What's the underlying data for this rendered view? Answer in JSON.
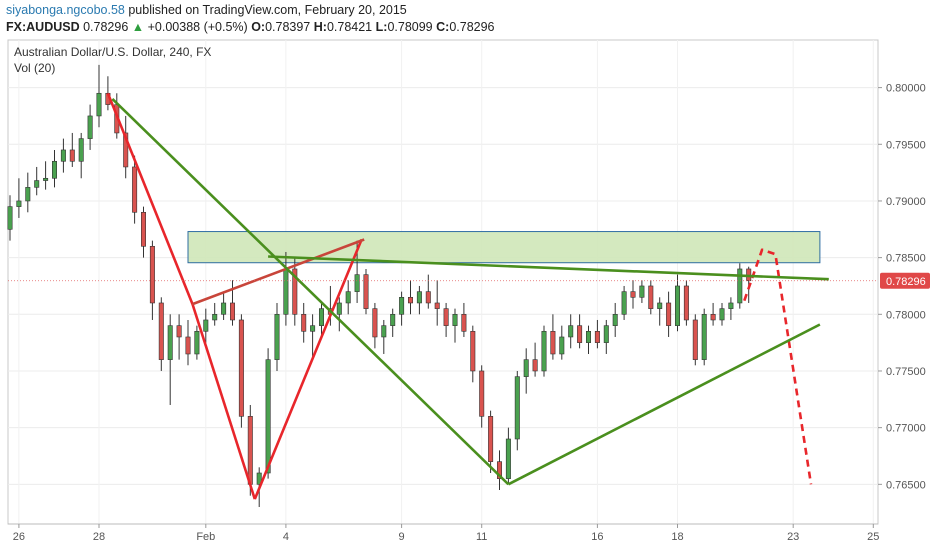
{
  "header": {
    "author": "siyabonga.ngcobo.58",
    "published_text": "published on TradingView.com, February 20, 2015",
    "symbol": "FX:AUDUSD",
    "last": "0.78296",
    "change": "+0.00388 (+0.5%)",
    "ohlc": [
      {
        "label": "O:",
        "value": "0.78397"
      },
      {
        "label": "H:",
        "value": "0.78421"
      },
      {
        "label": "L:",
        "value": "0.78099"
      },
      {
        "label": "C:",
        "value": "0.78296"
      }
    ]
  },
  "chart_data": {
    "type": "candlestick",
    "title": "Australian Dollar/U.S. Dollar, 240, FX",
    "indicator": "Vol (20)",
    "ylim": [
      0.7615,
      0.8042
    ],
    "xlim": [
      0,
      92
    ],
    "y_ticks": [
      "0.80000",
      "0.79500",
      "0.79000",
      "0.78500",
      "0.78000",
      "0.77500",
      "0.77000",
      "0.76500"
    ],
    "x_ticks": [
      {
        "label": "26",
        "x": 1
      },
      {
        "label": "28",
        "x": 10
      },
      {
        "label": "Feb",
        "x": 22
      },
      {
        "label": "4",
        "x": 31
      },
      {
        "label": "9",
        "x": 44
      },
      {
        "label": "11",
        "x": 53
      },
      {
        "label": "16",
        "x": 66
      },
      {
        "label": "18",
        "x": 75
      },
      {
        "label": "23",
        "x": 88
      },
      {
        "label": "25",
        "x": 97
      }
    ],
    "last_price_label": "0.78296",
    "last_price": 0.78296,
    "candles": [
      [
        0.7875,
        0.7905,
        0.7865,
        0.7895
      ],
      [
        0.7895,
        0.792,
        0.7885,
        0.79
      ],
      [
        0.79,
        0.7925,
        0.789,
        0.7912
      ],
      [
        0.7912,
        0.793,
        0.7905,
        0.7918
      ],
      [
        0.7918,
        0.7935,
        0.791,
        0.792
      ],
      [
        0.792,
        0.7945,
        0.7912,
        0.7935
      ],
      [
        0.7935,
        0.7955,
        0.7925,
        0.7945
      ],
      [
        0.7945,
        0.796,
        0.793,
        0.7935
      ],
      [
        0.7935,
        0.796,
        0.792,
        0.7955
      ],
      [
        0.7955,
        0.7985,
        0.7945,
        0.7975
      ],
      [
        0.7975,
        0.802,
        0.7965,
        0.7995
      ],
      [
        0.7995,
        0.801,
        0.798,
        0.7985
      ],
      [
        0.7985,
        0.7995,
        0.7955,
        0.796
      ],
      [
        0.796,
        0.7975,
        0.792,
        0.793
      ],
      [
        0.793,
        0.794,
        0.788,
        0.789
      ],
      [
        0.789,
        0.7895,
        0.785,
        0.786
      ],
      [
        0.786,
        0.7865,
        0.7795,
        0.781
      ],
      [
        0.781,
        0.7815,
        0.775,
        0.776
      ],
      [
        0.776,
        0.78,
        0.772,
        0.779
      ],
      [
        0.779,
        0.78,
        0.776,
        0.778
      ],
      [
        0.778,
        0.7795,
        0.7755,
        0.7765
      ],
      [
        0.7765,
        0.779,
        0.776,
        0.7785
      ],
      [
        0.7785,
        0.7805,
        0.7775,
        0.7795
      ],
      [
        0.7795,
        0.781,
        0.779,
        0.78
      ],
      [
        0.78,
        0.782,
        0.7795,
        0.781
      ],
      [
        0.781,
        0.783,
        0.779,
        0.7795
      ],
      [
        0.7795,
        0.78,
        0.77,
        0.771
      ],
      [
        0.771,
        0.772,
        0.764,
        0.765
      ],
      [
        0.765,
        0.7665,
        0.763,
        0.766
      ],
      [
        0.766,
        0.777,
        0.7655,
        0.776
      ],
      [
        0.776,
        0.781,
        0.775,
        0.78
      ],
      [
        0.78,
        0.7855,
        0.779,
        0.784
      ],
      [
        0.784,
        0.785,
        0.779,
        0.78
      ],
      [
        0.78,
        0.781,
        0.7775,
        0.7785
      ],
      [
        0.7785,
        0.78,
        0.776,
        0.779
      ],
      [
        0.779,
        0.781,
        0.778,
        0.7805
      ],
      [
        0.7805,
        0.7825,
        0.779,
        0.78
      ],
      [
        0.78,
        0.7815,
        0.7785,
        0.781
      ],
      [
        0.781,
        0.783,
        0.78,
        0.782
      ],
      [
        0.782,
        0.7865,
        0.781,
        0.7835
      ],
      [
        0.7835,
        0.784,
        0.78,
        0.7805
      ],
      [
        0.7805,
        0.781,
        0.777,
        0.778
      ],
      [
        0.778,
        0.7795,
        0.7765,
        0.779
      ],
      [
        0.779,
        0.7805,
        0.778,
        0.78
      ],
      [
        0.78,
        0.782,
        0.779,
        0.7815
      ],
      [
        0.7815,
        0.783,
        0.78,
        0.781
      ],
      [
        0.781,
        0.7825,
        0.78,
        0.782
      ],
      [
        0.782,
        0.7835,
        0.7805,
        0.781
      ],
      [
        0.781,
        0.783,
        0.779,
        0.7805
      ],
      [
        0.7805,
        0.781,
        0.778,
        0.779
      ],
      [
        0.779,
        0.7805,
        0.7775,
        0.78
      ],
      [
        0.78,
        0.781,
        0.778,
        0.7785
      ],
      [
        0.7785,
        0.779,
        0.774,
        0.775
      ],
      [
        0.775,
        0.7755,
        0.77,
        0.771
      ],
      [
        0.771,
        0.7715,
        0.766,
        0.767
      ],
      [
        0.767,
        0.768,
        0.7645,
        0.7655
      ],
      [
        0.7655,
        0.77,
        0.765,
        0.769
      ],
      [
        0.769,
        0.775,
        0.768,
        0.7745
      ],
      [
        0.7745,
        0.777,
        0.773,
        0.776
      ],
      [
        0.776,
        0.7775,
        0.7745,
        0.775
      ],
      [
        0.775,
        0.779,
        0.7745,
        0.7785
      ],
      [
        0.7785,
        0.78,
        0.776,
        0.7765
      ],
      [
        0.7765,
        0.779,
        0.776,
        0.778
      ],
      [
        0.778,
        0.78,
        0.777,
        0.779
      ],
      [
        0.779,
        0.78,
        0.777,
        0.7775
      ],
      [
        0.7775,
        0.779,
        0.7765,
        0.7785
      ],
      [
        0.7785,
        0.7795,
        0.777,
        0.7775
      ],
      [
        0.7775,
        0.7795,
        0.7765,
        0.779
      ],
      [
        0.779,
        0.781,
        0.778,
        0.78
      ],
      [
        0.78,
        0.7825,
        0.7795,
        0.782
      ],
      [
        0.782,
        0.783,
        0.7805,
        0.7815
      ],
      [
        0.7815,
        0.783,
        0.781,
        0.7825
      ],
      [
        0.7825,
        0.783,
        0.78,
        0.7805
      ],
      [
        0.7805,
        0.7815,
        0.779,
        0.781
      ],
      [
        0.781,
        0.782,
        0.778,
        0.779
      ],
      [
        0.779,
        0.7835,
        0.7785,
        0.7825
      ],
      [
        0.7825,
        0.783,
        0.779,
        0.7795
      ],
      [
        0.7795,
        0.78,
        0.7755,
        0.776
      ],
      [
        0.776,
        0.7805,
        0.7755,
        0.78
      ],
      [
        0.78,
        0.781,
        0.779,
        0.7795
      ],
      [
        0.7795,
        0.781,
        0.779,
        0.7805
      ],
      [
        0.7805,
        0.7815,
        0.7795,
        0.781
      ],
      [
        0.781,
        0.7845,
        0.7805,
        0.784
      ],
      [
        0.784,
        0.7842,
        0.781,
        0.78296
      ]
    ],
    "annotations": {
      "resistance_zone": {
        "x0": 20,
        "x1": 91,
        "y0": 0.78455,
        "y1": 0.7873
      },
      "lines": [
        {
          "name": "red-w-leg-1",
          "color": "#e8262b",
          "points": [
            [
              11,
              0.7995
            ],
            [
              20.5,
              0.7809
            ]
          ]
        },
        {
          "name": "red-w-leg-2",
          "color": "#e8262b",
          "points": [
            [
              20.5,
              0.7809
            ],
            [
              27.5,
              0.7637
            ]
          ]
        },
        {
          "name": "red-w-leg-3",
          "color": "#e8262b",
          "points": [
            [
              27.5,
              0.7637
            ],
            [
              39.5,
              0.7866
            ]
          ]
        },
        {
          "name": "red-w-leg-4",
          "color": "#c8453a",
          "points": [
            [
              20.5,
              0.7809
            ],
            [
              39.8,
              0.7866
            ]
          ]
        },
        {
          "name": "red-projection",
          "color": "#e8262b",
          "dashed": true,
          "points": [
            [
              82.5,
              0.7812
            ],
            [
              84.5,
              0.7857
            ],
            [
              86,
              0.7853
            ],
            [
              90,
              0.765
            ]
          ]
        },
        {
          "name": "green-wedge-upper",
          "color": "#4a8f1e",
          "points": [
            [
              11.5,
              0.799
            ],
            [
              56,
              0.765
            ]
          ]
        },
        {
          "name": "green-wedge-support",
          "color": "#4a8f1e",
          "points": [
            [
              56,
              0.765
            ],
            [
              91,
              0.7791
            ]
          ]
        },
        {
          "name": "green-resistance-line",
          "color": "#4a8f1e",
          "points": [
            [
              29,
              0.7851
            ],
            [
              92,
              0.7831
            ]
          ]
        }
      ]
    }
  },
  "colors": {
    "up": "#4aa14f",
    "down": "#d9534f",
    "zone_fill": "#cfe7b8",
    "zone_border": "#2e6ca2",
    "price_badge": "#e04848",
    "accent": "#2a7ab0"
  }
}
